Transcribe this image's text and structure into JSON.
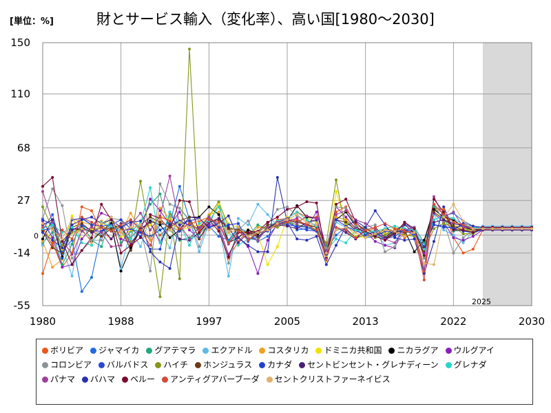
{
  "header": {
    "unit_label": "[単位：%]",
    "title": "財とサービス輸入（変化率）、高い国[1980～2030]"
  },
  "chart_data": {
    "type": "line",
    "x_ticks": [
      1980,
      1988,
      1997,
      2005,
      2013,
      2022,
      2030
    ],
    "y_ticks": [
      150,
      110,
      68,
      27,
      0,
      -14,
      -55
    ],
    "xlim": [
      1980,
      2030
    ],
    "ylim": [
      -55,
      150
    ],
    "forecast_start": 2025,
    "forecast_label": "2025",
    "grid": true,
    "legend_position": "bottom",
    "series": [
      {
        "name": "ボリビア",
        "color": "#e8571c",
        "values": [
          -30,
          -6,
          -25,
          -14,
          22,
          19,
          3,
          -3,
          4,
          -11,
          6,
          8,
          0,
          7,
          3,
          9,
          11,
          14,
          5,
          -18,
          -5,
          4,
          -1,
          4,
          12,
          13,
          18,
          14,
          14,
          -16,
          18,
          22,
          8,
          4,
          2,
          -3,
          4,
          -2,
          2,
          -28,
          21,
          20,
          -2,
          -14,
          -11,
          4,
          5,
          6,
          6,
          6,
          6
        ]
      },
      {
        "name": "ジャマイカ",
        "color": "#1f6be0",
        "values": [
          4,
          16,
          -12,
          -4,
          -44,
          -33,
          2,
          8,
          6,
          12,
          5,
          -3,
          8,
          9,
          38,
          12,
          -2,
          7,
          -1,
          -4,
          6,
          2,
          -5,
          -1,
          8,
          14,
          4,
          5,
          8,
          -11,
          0,
          6,
          5,
          -2,
          -1,
          -3,
          2,
          5,
          -1,
          -5,
          12,
          15,
          17,
          11,
          7,
          5,
          6,
          6,
          6,
          6,
          6
        ]
      },
      {
        "name": "グアテマラ",
        "color": "#1ea977",
        "values": [
          -6,
          2,
          -23,
          -7,
          9,
          -4,
          -9,
          14,
          -6,
          3,
          9,
          24,
          32,
          4,
          -4,
          -2,
          1,
          8,
          25,
          -5,
          5,
          -1,
          8,
          4,
          10,
          9,
          11,
          8,
          3,
          -8,
          14,
          12,
          3,
          5,
          2,
          1,
          2,
          8,
          6,
          -6,
          22,
          12,
          3,
          4,
          4,
          6,
          6,
          6,
          6,
          6,
          6
        ]
      },
      {
        "name": "エクアドル",
        "color": "#5bbbe8",
        "values": [
          -8,
          10,
          -9,
          -32,
          14,
          8,
          -1,
          9,
          -26,
          4,
          -9,
          14,
          4,
          -10,
          21,
          11,
          -13,
          9,
          8,
          -32,
          13,
          8,
          24,
          16,
          7,
          11,
          8,
          7,
          9,
          -12,
          10,
          6,
          5,
          4,
          3,
          -8,
          -6,
          8,
          5,
          -10,
          16,
          4,
          0,
          -6,
          3,
          7,
          7,
          7,
          7,
          7,
          7
        ]
      },
      {
        "name": "コスタリカ",
        "color": "#f0a020",
        "values": [
          -5,
          -25,
          -19,
          13,
          10,
          8,
          11,
          3,
          2,
          17,
          4,
          -4,
          21,
          13,
          8,
          12,
          2,
          16,
          18,
          2,
          4,
          -1,
          6,
          6,
          9,
          11,
          10,
          9,
          6,
          -20,
          14,
          12,
          5,
          3,
          5,
          1,
          4,
          5,
          3,
          -11,
          20,
          18,
          6,
          4,
          3,
          5,
          5,
          5,
          5,
          5,
          5
        ]
      },
      {
        "name": "ドミニカ共和国",
        "color": "#f2e000",
        "values": [
          4,
          -3,
          -11,
          15,
          -3,
          5,
          8,
          12,
          -2,
          4,
          3,
          8,
          15,
          12,
          3,
          6,
          8,
          14,
          24,
          9,
          6,
          -3,
          1,
          -23,
          -9,
          14,
          11,
          13,
          10,
          -16,
          34,
          8,
          -1,
          -2,
          4,
          2,
          6,
          4,
          3,
          -14,
          17,
          14,
          8,
          5,
          4,
          5,
          5,
          5,
          5,
          5,
          5
        ]
      },
      {
        "name": "ニカラグア",
        "color": "#000000",
        "values": [
          -3,
          12,
          -17,
          5,
          4,
          -5,
          3,
          9,
          -28,
          -10,
          4,
          11,
          8,
          -2,
          4,
          14,
          14,
          22,
          16,
          -6,
          -2,
          4,
          1,
          5,
          10,
          11,
          23,
          14,
          13,
          -15,
          12,
          18,
          7,
          1,
          2,
          -3,
          2,
          4,
          -13,
          -4,
          20,
          14,
          12,
          6,
          4,
          5,
          5,
          5,
          5,
          5,
          5
        ]
      },
      {
        "name": "ウルグアイ",
        "color": "#8a1fb8",
        "values": [
          11,
          -2,
          -25,
          -23,
          -3,
          6,
          17,
          14,
          -3,
          -6,
          3,
          28,
          19,
          8,
          18,
          4,
          -3,
          8,
          7,
          -15,
          -2,
          -9,
          -30,
          -4,
          9,
          11,
          13,
          6,
          18,
          -10,
          22,
          14,
          5,
          3,
          -5,
          -8,
          -10,
          10,
          3,
          -14,
          17,
          10,
          -2,
          -4,
          -1,
          4,
          4,
          4,
          4,
          4,
          4
        ]
      },
      {
        "name": "コロンビア",
        "color": "#8c9396",
        "values": [
          13,
          36,
          23,
          -18,
          -12,
          -4,
          -4,
          13,
          12,
          -2,
          5,
          -28,
          40,
          24,
          21,
          12,
          -9,
          12,
          8,
          -22,
          4,
          11,
          -4,
          8,
          20,
          22,
          15,
          10,
          11,
          -10,
          22,
          21,
          7,
          6,
          8,
          -13,
          -9,
          3,
          6,
          -18,
          24,
          11,
          -14,
          -2,
          4,
          6,
          6,
          6,
          6,
          6,
          6
        ]
      },
      {
        "name": "バルバドス",
        "color": "#2a47d6",
        "values": [
          4,
          5,
          -8,
          4,
          8,
          3,
          3,
          6,
          3,
          5,
          -1,
          -11,
          -11,
          18,
          3,
          14,
          13,
          6,
          8,
          3,
          6,
          -3,
          -2,
          4,
          9,
          10,
          6,
          4,
          3,
          -15,
          4,
          5,
          -2,
          0,
          -1,
          3,
          2,
          4,
          0,
          -9,
          8,
          6,
          6,
          7,
          6,
          5,
          5,
          5,
          5,
          5,
          5
        ]
      },
      {
        "name": "ハイチ",
        "color": "#86951a",
        "values": [
          22,
          5,
          -8,
          2,
          5,
          3,
          7,
          4,
          6,
          -5,
          42,
          -1,
          -48,
          17,
          -34,
          145,
          4,
          15,
          26,
          6,
          4,
          2,
          -2,
          7,
          6,
          10,
          8,
          6,
          4,
          -6,
          43,
          3,
          -3,
          1,
          -2,
          0,
          2,
          0,
          -1,
          -12,
          5,
          9,
          6,
          1,
          1,
          5,
          5,
          5,
          5,
          5,
          5
        ]
      },
      {
        "name": "ホンジュラス",
        "color": "#6b3a16",
        "values": [
          3,
          -10,
          -14,
          6,
          9,
          3,
          -1,
          5,
          8,
          -12,
          8,
          14,
          10,
          6,
          11,
          14,
          -3,
          10,
          12,
          5,
          4,
          1,
          2,
          8,
          9,
          12,
          10,
          8,
          6,
          -14,
          12,
          10,
          4,
          6,
          0,
          5,
          3,
          2,
          3,
          -12,
          18,
          12,
          7,
          4,
          2,
          5,
          5,
          5,
          5,
          5,
          5
        ]
      },
      {
        "name": "カナダ",
        "color": "#2440d0",
        "values": [
          12,
          8,
          -18,
          12,
          13,
          8,
          7,
          8,
          12,
          5,
          2,
          -1,
          4,
          8,
          11,
          8,
          5,
          14,
          6,
          8,
          9,
          -5,
          2,
          3,
          9,
          8,
          7,
          6,
          3,
          -13,
          12,
          7,
          3,
          1,
          2,
          -3,
          -1,
          4,
          3,
          -9,
          8,
          7,
          5,
          3,
          2,
          4,
          4,
          4,
          4,
          4,
          4
        ]
      },
      {
        "name": "セントビンセント・グレナディーン",
        "color": "#4a1f7a",
        "values": [
          8,
          12,
          -5,
          4,
          6,
          2,
          6,
          -3,
          9,
          -8,
          5,
          10,
          -6,
          8,
          -3,
          -4,
          2,
          10,
          13,
          6,
          -6,
          2,
          -1,
          4,
          8,
          7,
          5,
          10,
          12,
          -18,
          6,
          2,
          -3,
          4,
          6,
          -2,
          4,
          8,
          2,
          -10,
          10,
          12,
          9,
          7,
          5,
          4,
          4,
          4,
          4,
          4,
          4
        ]
      },
      {
        "name": "グレナダ",
        "color": "#2ad4c8",
        "values": [
          5,
          8,
          2,
          6,
          -6,
          -8,
          10,
          7,
          3,
          -3,
          9,
          37,
          -6,
          18,
          9,
          -8,
          9,
          11,
          22,
          3,
          -8,
          -3,
          -4,
          6,
          11,
          13,
          18,
          12,
          7,
          -12,
          -3,
          -6,
          4,
          2,
          3,
          5,
          7,
          5,
          4,
          -11,
          12,
          15,
          13,
          8,
          6,
          5,
          5,
          5,
          5,
          5,
          5
        ]
      },
      {
        "name": "パナマ",
        "color": "#a0409a",
        "values": [
          34,
          10,
          -4,
          -15,
          3,
          6,
          2,
          -9,
          -8,
          8,
          17,
          4,
          15,
          46,
          8,
          -3,
          6,
          14,
          8,
          -7,
          3,
          -2,
          -4,
          6,
          10,
          13,
          9,
          15,
          13,
          -12,
          16,
          19,
          12,
          9,
          4,
          -3,
          -6,
          4,
          6,
          -27,
          30,
          14,
          18,
          6,
          5,
          5,
          5,
          5,
          5,
          5,
          5
        ]
      },
      {
        "name": "バハマ",
        "color": "#2830b0",
        "values": [
          2,
          -4,
          -10,
          8,
          12,
          14,
          9,
          12,
          6,
          10,
          11,
          -13,
          -21,
          -26,
          8,
          11,
          13,
          6,
          9,
          15,
          -2,
          -8,
          -13,
          -13,
          45,
          10,
          -3,
          -4,
          -1,
          -23,
          -8,
          7,
          11,
          6,
          19,
          8,
          -2,
          -4,
          -3,
          -30,
          -5,
          22,
          4,
          9,
          7,
          6,
          6,
          6,
          6,
          6,
          6
        ]
      },
      {
        "name": "ベルー",
        "color": "#7a0a30",
        "values": [
          38,
          45,
          -5,
          -23,
          -12,
          -2,
          24,
          12,
          -14,
          -8,
          -2,
          16,
          13,
          4,
          27,
          26,
          2,
          12,
          3,
          -17,
          2,
          2,
          3,
          10,
          14,
          20,
          22,
          26,
          25,
          -18,
          24,
          28,
          10,
          3,
          -1,
          -4,
          1,
          10,
          5,
          -16,
          28,
          18,
          4,
          4,
          2,
          6,
          6,
          6,
          6,
          6,
          6
        ]
      },
      {
        "name": "アンティグアバーブーダ",
        "color": "#d44a3a",
        "values": [
          6,
          -8,
          4,
          -3,
          14,
          10,
          6,
          3,
          8,
          12,
          4,
          -8,
          14,
          11,
          5,
          9,
          4,
          12,
          10,
          -6,
          3,
          -4,
          2,
          4,
          8,
          10,
          12,
          8,
          4,
          -19,
          6,
          4,
          -2,
          4,
          6,
          9,
          5,
          3,
          2,
          -35,
          24,
          16,
          10,
          8,
          5,
          5,
          5,
          5,
          5,
          5,
          5
        ]
      },
      {
        "name": "セントクリストファーネイビス",
        "color": "#e2b06a",
        "values": [
          9,
          4,
          -3,
          13,
          5,
          -6,
          9,
          14,
          3,
          6,
          8,
          -2,
          12,
          4,
          10,
          6,
          12,
          4,
          8,
          3,
          6,
          -1,
          2,
          4,
          9,
          12,
          16,
          10,
          8,
          -14,
          4,
          6,
          2,
          -2,
          1,
          4,
          3,
          -1,
          2,
          -22,
          -23,
          14,
          24,
          11,
          5,
          5,
          5,
          5,
          5,
          5,
          5
        ]
      }
    ]
  }
}
